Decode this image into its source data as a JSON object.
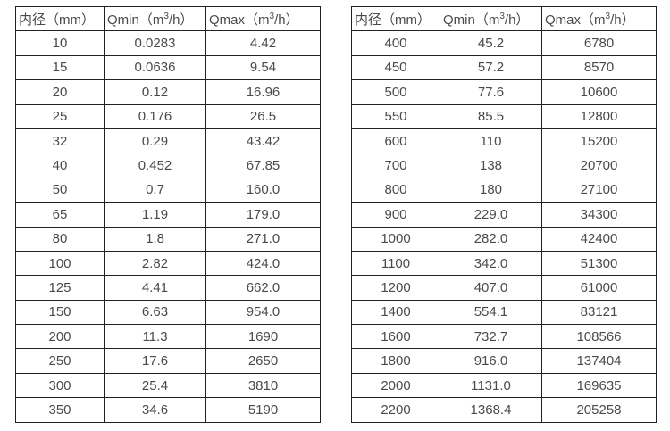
{
  "colors": {
    "border": "#222222",
    "text": "#4a4a4a",
    "background": "#ffffff"
  },
  "tables": [
    {
      "title": "flow-spec-small-diameters",
      "headers": [
        {
          "pre": "内径（mm）",
          "sup": "",
          "post": ""
        },
        {
          "pre": "Qmin（m",
          "sup": "3",
          "post": "/h）"
        },
        {
          "pre": "Qmax（m",
          "sup": "3",
          "post": "/h）"
        }
      ],
      "rows": [
        [
          "10",
          "0.0283",
          "4.42"
        ],
        [
          "15",
          "0.0636",
          "9.54"
        ],
        [
          "20",
          "0.12",
          "16.96"
        ],
        [
          "25",
          "0.176",
          "26.5"
        ],
        [
          "32",
          "0.29",
          "43.42"
        ],
        [
          "40",
          "0.452",
          "67.85"
        ],
        [
          "50",
          "0.7",
          "160.0"
        ],
        [
          "65",
          "1.19",
          "179.0"
        ],
        [
          "80",
          "1.8",
          "271.0"
        ],
        [
          "100",
          "2.82",
          "424.0"
        ],
        [
          "125",
          "4.41",
          "662.0"
        ],
        [
          "150",
          "6.63",
          "954.0"
        ],
        [
          "200",
          "11.3",
          "1690"
        ],
        [
          "250",
          "17.6",
          "2650"
        ],
        [
          "300",
          "25.4",
          "3810"
        ],
        [
          "350",
          "34.6",
          "5190"
        ]
      ]
    },
    {
      "title": "flow-spec-large-diameters",
      "headers": [
        {
          "pre": "内径（mm）",
          "sup": "",
          "post": ""
        },
        {
          "pre": "Qmin（m",
          "sup": "3",
          "post": "/h）"
        },
        {
          "pre": "Qmax（m",
          "sup": "3",
          "post": "/h）"
        }
      ],
      "rows": [
        [
          "400",
          "45.2",
          "6780"
        ],
        [
          "450",
          "57.2",
          "8570"
        ],
        [
          "500",
          "77.6",
          "10600"
        ],
        [
          "550",
          "85.5",
          "12800"
        ],
        [
          "600",
          "110",
          "15200"
        ],
        [
          "700",
          "138",
          "20700"
        ],
        [
          "800",
          "180",
          "27100"
        ],
        [
          "900",
          "229.0",
          "34300"
        ],
        [
          "1000",
          "282.0",
          "42400"
        ],
        [
          "1100",
          "342.0",
          "51300"
        ],
        [
          "1200",
          "407.0",
          "61000"
        ],
        [
          "1400",
          "554.1",
          "83121"
        ],
        [
          "1600",
          "732.7",
          "108566"
        ],
        [
          "1800",
          "916.0",
          "137404"
        ],
        [
          "2000",
          "1131.0",
          "169635"
        ],
        [
          "2200",
          "1368.4",
          "205258"
        ]
      ]
    }
  ]
}
